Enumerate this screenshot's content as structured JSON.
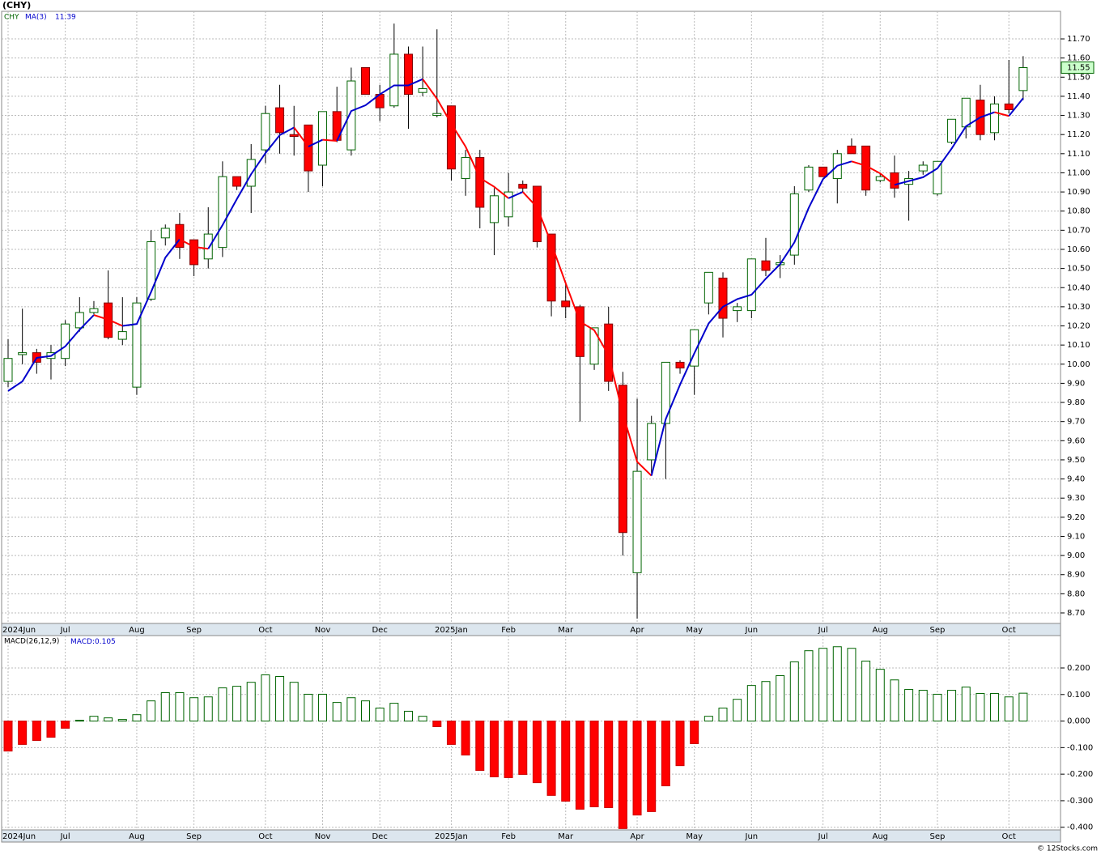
{
  "chart_data": [
    {
      "type": "candlestick",
      "title": "(CHY)",
      "symbol": "CHY",
      "categories": [
        "2024Jun",
        null,
        null,
        null,
        "Jul",
        null,
        null,
        null,
        null,
        "Aug",
        null,
        null,
        null,
        "Sep",
        null,
        null,
        null,
        null,
        "Oct",
        null,
        null,
        null,
        "Nov",
        null,
        null,
        null,
        "Dec",
        null,
        null,
        null,
        null,
        "2025Jan",
        null,
        null,
        null,
        "Feb",
        null,
        null,
        null,
        "Mar",
        null,
        null,
        null,
        null,
        "Apr",
        null,
        null,
        null,
        "May",
        null,
        null,
        null,
        "Jun",
        null,
        null,
        null,
        null,
        "Jul",
        null,
        null,
        null,
        "Aug",
        null,
        null,
        null,
        "Sep",
        null,
        null,
        null,
        null,
        "Oct",
        null
      ],
      "open": [
        9.91,
        10.05,
        10.06,
        10.03,
        10.03,
        10.19,
        10.27,
        10.32,
        10.13,
        9.88,
        10.34,
        10.66,
        10.73,
        10.65,
        10.55,
        10.61,
        10.98,
        10.93,
        11.12,
        11.34,
        11.2,
        11.25,
        11.04,
        11.32,
        11.12,
        11.55,
        11.41,
        11.35,
        11.62,
        11.42,
        11.3,
        11.35,
        10.97,
        11.08,
        10.74,
        10.77,
        10.94,
        10.93,
        10.68,
        10.33,
        10.3,
        10.0,
        10.21,
        9.89,
        8.91,
        9.5,
        9.69,
        10.01,
        9.99,
        10.32,
        10.45,
        10.28,
        10.28,
        10.54,
        10.52,
        10.57,
        10.91,
        11.03,
        10.97,
        11.14,
        11.14,
        10.96,
        11.0,
        10.94,
        11.01,
        10.89,
        11.16,
        11.24,
        11.38,
        11.21,
        11.36,
        11.43
      ],
      "high": [
        10.13,
        10.29,
        10.08,
        10.1,
        10.23,
        10.35,
        10.33,
        10.49,
        10.35,
        10.35,
        10.7,
        10.73,
        10.79,
        10.65,
        10.82,
        11.06,
        10.98,
        11.15,
        11.35,
        11.46,
        11.35,
        11.25,
        11.32,
        11.45,
        11.55,
        11.55,
        11.46,
        11.78,
        11.66,
        11.66,
        11.75,
        11.35,
        11.12,
        11.12,
        10.92,
        11.0,
        10.96,
        10.93,
        10.68,
        10.43,
        10.31,
        10.19,
        10.3,
        9.96,
        9.82,
        9.73,
        10.01,
        10.02,
        10.18,
        10.48,
        10.48,
        10.32,
        10.55,
        10.66,
        10.57,
        10.93,
        11.04,
        11.03,
        11.12,
        11.18,
        11.14,
        11.0,
        11.09,
        11.01,
        11.06,
        11.06,
        11.28,
        11.39,
        11.46,
        11.4,
        11.59,
        11.61
      ],
      "low": [
        9.88,
        10.0,
        9.95,
        9.92,
        9.99,
        10.17,
        10.26,
        10.13,
        10.1,
        9.84,
        10.33,
        10.62,
        10.55,
        10.46,
        10.5,
        10.56,
        10.91,
        10.79,
        11.05,
        11.1,
        11.09,
        10.9,
        10.93,
        11.16,
        11.09,
        11.41,
        11.27,
        11.34,
        11.23,
        11.4,
        11.29,
        10.96,
        10.88,
        10.71,
        10.57,
        10.72,
        10.9,
        10.61,
        10.25,
        10.24,
        9.7,
        9.97,
        9.86,
        9.0,
        8.67,
        9.43,
        9.4,
        9.95,
        9.84,
        10.26,
        10.14,
        10.22,
        10.24,
        10.46,
        10.45,
        10.52,
        10.9,
        10.98,
        10.84,
        11.1,
        10.88,
        10.95,
        10.87,
        10.75,
        10.99,
        10.88,
        11.15,
        11.18,
        11.17,
        11.17,
        11.31,
        11.38
      ],
      "close": [
        10.03,
        10.06,
        10.01,
        10.06,
        10.21,
        10.27,
        10.29,
        10.14,
        10.17,
        10.32,
        10.64,
        10.71,
        10.61,
        10.52,
        10.68,
        10.98,
        10.93,
        11.07,
        11.31,
        11.21,
        11.19,
        11.01,
        11.32,
        11.17,
        11.48,
        11.41,
        11.34,
        11.62,
        11.41,
        11.44,
        11.31,
        11.02,
        11.08,
        10.82,
        10.88,
        10.9,
        10.92,
        10.64,
        10.33,
        10.3,
        10.04,
        10.19,
        9.91,
        9.12,
        9.44,
        9.69,
        10.01,
        9.98,
        10.18,
        10.48,
        10.24,
        10.3,
        10.55,
        10.49,
        10.53,
        10.89,
        11.03,
        10.98,
        11.1,
        11.1,
        10.91,
        10.98,
        10.92,
        10.97,
        11.04,
        11.06,
        11.28,
        11.39,
        11.2,
        11.36,
        11.33,
        11.55
      ],
      "up_color": "#006400",
      "down_color": "#ff0000",
      "overlay": {
        "name": "MA(3)",
        "rising_color": "#0000cc",
        "falling_color": "#ff0000",
        "values": [
          9.86,
          9.91,
          10.033,
          10.043,
          10.093,
          10.18,
          10.257,
          10.233,
          10.2,
          10.21,
          10.377,
          10.557,
          10.653,
          10.613,
          10.603,
          10.727,
          10.863,
          10.993,
          11.103,
          11.197,
          11.237,
          11.137,
          11.173,
          11.167,
          11.323,
          11.353,
          11.41,
          11.457,
          11.457,
          11.49,
          11.387,
          11.257,
          11.137,
          10.973,
          10.927,
          10.867,
          10.9,
          10.82,
          10.63,
          10.423,
          10.223,
          10.177,
          10.047,
          9.74,
          9.49,
          9.417,
          9.713,
          9.893,
          10.057,
          10.213,
          10.3,
          10.34,
          10.363,
          10.447,
          10.523,
          10.637,
          10.817,
          10.967,
          11.037,
          11.06,
          11.037,
          10.997,
          10.937,
          10.957,
          10.977,
          11.023,
          11.127,
          11.243,
          11.29,
          11.317,
          11.297,
          11.39
        ]
      },
      "ylim": [
        8.645,
        11.844
      ],
      "yticks": [
        {
          "value": 8.7,
          "label": "8.70"
        },
        {
          "value": 8.8,
          "label": "8.80"
        },
        {
          "value": 8.9,
          "label": "8.90"
        },
        {
          "value": 9.0,
          "label": "9.00"
        },
        {
          "value": 9.1,
          "label": "9.10"
        },
        {
          "value": 9.2,
          "label": "9.20"
        },
        {
          "value": 9.3,
          "label": "9.30"
        },
        {
          "value": 9.4,
          "label": "9.40"
        },
        {
          "value": 9.5,
          "label": "9.50"
        },
        {
          "value": 9.6,
          "label": "9.60"
        },
        {
          "value": 9.7,
          "label": "9.70"
        },
        {
          "value": 9.8,
          "label": "9.80"
        },
        {
          "value": 9.9,
          "label": "9.90"
        },
        {
          "value": 10.0,
          "label": "10.00"
        },
        {
          "value": 10.1,
          "label": "10.10"
        },
        {
          "value": 10.2,
          "label": "10.20"
        },
        {
          "value": 10.3,
          "label": "10.30"
        },
        {
          "value": 10.4,
          "label": "10.40"
        },
        {
          "value": 10.5,
          "label": "10.50"
        },
        {
          "value": 10.6,
          "label": "10.60"
        },
        {
          "value": 10.7,
          "label": "10.70"
        },
        {
          "value": 10.8,
          "label": "10.80"
        },
        {
          "value": 10.9,
          "label": "10.90"
        },
        {
          "value": 11.0,
          "label": "11.00"
        },
        {
          "value": 11.1,
          "label": "11.10"
        },
        {
          "value": 11.2,
          "label": "11.20"
        },
        {
          "value": 11.3,
          "label": "11.30"
        },
        {
          "value": 11.4,
          "label": "11.40"
        },
        {
          "value": 11.5,
          "label": "11.50"
        },
        {
          "value": 11.6,
          "label": "11.60"
        },
        {
          "value": 11.7,
          "label": "11.70"
        }
      ],
      "grid": true
    },
    {
      "type": "macd",
      "name": "MACD(26,12,9)",
      "value_name": "MACD:",
      "up_color": "#006400",
      "down_color": "#ff0000",
      "values": [
        -0.113,
        -0.088,
        -0.073,
        -0.061,
        -0.027,
        0.003,
        0.018,
        0.012,
        0.006,
        0.024,
        0.076,
        0.107,
        0.107,
        0.088,
        0.091,
        0.125,
        0.131,
        0.146,
        0.174,
        0.168,
        0.146,
        0.101,
        0.101,
        0.07,
        0.088,
        0.076,
        0.049,
        0.067,
        0.037,
        0.018,
        -0.021,
        -0.088,
        -0.128,
        -0.186,
        -0.21,
        -0.213,
        -0.201,
        -0.232,
        -0.28,
        -0.302,
        -0.332,
        -0.323,
        -0.326,
        -0.405,
        -0.354,
        -0.341,
        -0.244,
        -0.168,
        -0.085,
        0.018,
        0.049,
        0.082,
        0.134,
        0.149,
        0.171,
        0.223,
        0.265,
        0.274,
        0.28,
        0.274,
        0.226,
        0.195,
        0.155,
        0.119,
        0.116,
        0.101,
        0.116,
        0.128,
        0.104,
        0.104,
        0.091,
        0.105
      ],
      "ylim": [
        -0.41,
        0.322
      ],
      "yticks": [
        {
          "value": -0.4,
          "label": "-0.400"
        },
        {
          "value": -0.3,
          "label": "-0.300"
        },
        {
          "value": -0.2,
          "label": "-0.200"
        },
        {
          "value": -0.1,
          "label": "-0.100"
        },
        {
          "value": 0,
          "label": "0.000"
        },
        {
          "value": 0.1,
          "label": "0.100"
        },
        {
          "value": 0.2,
          "label": "0.200"
        }
      ],
      "grid": true,
      "credit": "© 12Stocks.com"
    }
  ]
}
